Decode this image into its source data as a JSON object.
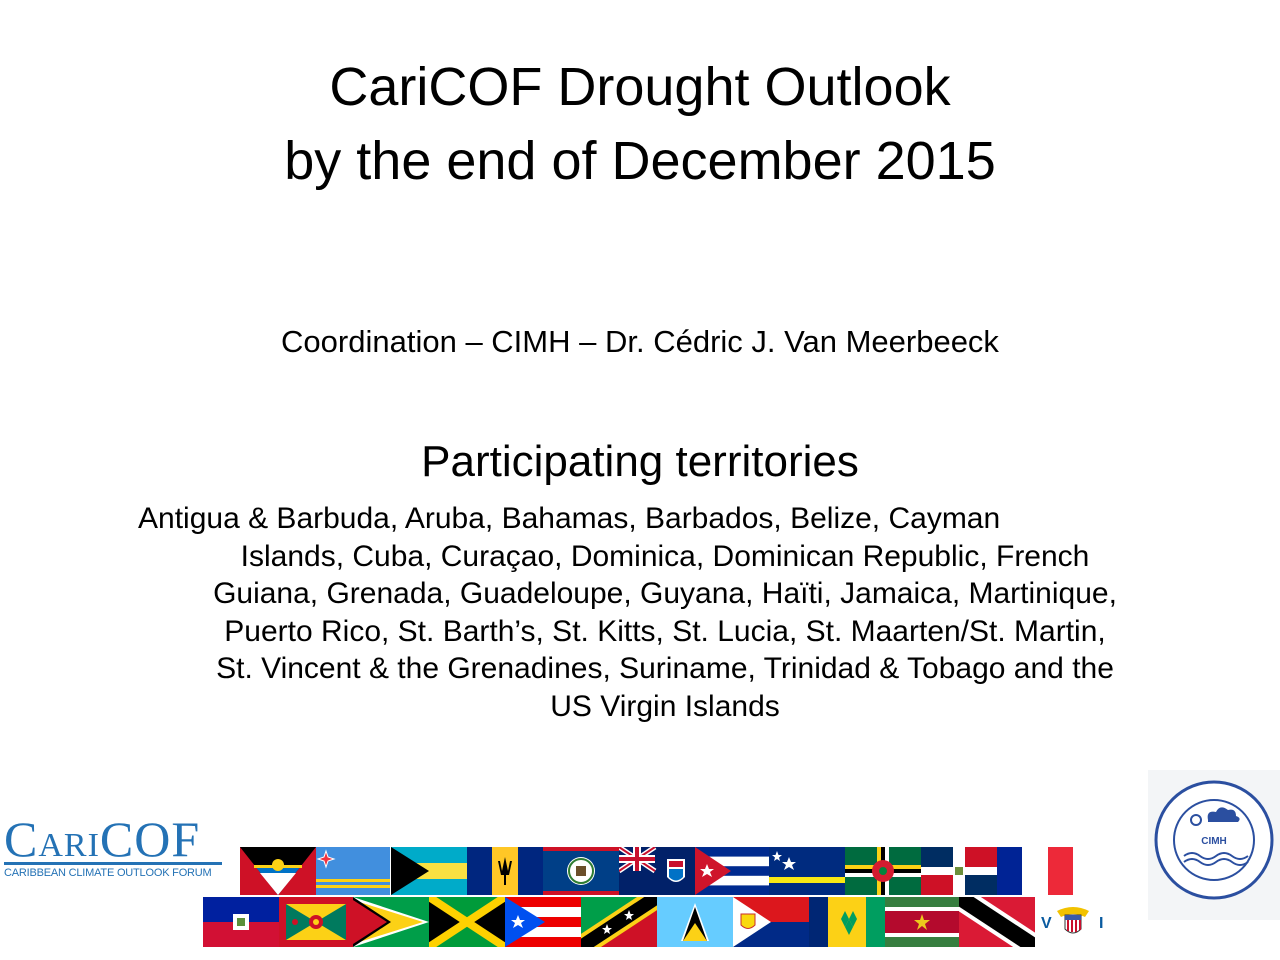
{
  "title": {
    "line1": "CariCOF Drought Outlook",
    "line2": "by the end of December 2015"
  },
  "coordination": "Coordination – CIMH – Dr. Cédric J. Van Meerbeeck",
  "participating_heading": "Participating territories",
  "territories_lines": [
    "Antigua & Barbuda, Aruba, Bahamas, Barbados, Belize, Cayman",
    "Islands, Cuba, Curaçao, Dominica, Dominican Republic, French",
    "Guiana, Grenada, Guadeloupe, Guyana, Haïti, Jamaica, Martinique,",
    "Puerto Rico, St. Barth’s, St. Kitts, St. Lucia, St. Maarten/St. Martin,",
    "St. Vincent & the Grenadines, Suriname, Trinidad & Tobago and the",
    "US Virgin Islands"
  ],
  "caricof_logo": {
    "wordmark": "CARICOF",
    "tagline": "CARIBBEAN CLIMATE OUTLOOK FORUM",
    "color": "#2472b5"
  },
  "cimh_logo": {
    "name": "Caribbean Institute for Meteorology and Hydrology",
    "abbr": "CIMH",
    "color": "#2b4fa0"
  },
  "flags_row1": [
    "Antigua and Barbuda",
    "Aruba",
    "Bahamas",
    "Barbados",
    "Belize",
    "Cayman Islands",
    "Cuba",
    "Curaçao",
    "Dominica",
    "Dominican Republic",
    "France"
  ],
  "flags_row2": [
    "Haiti",
    "Grenada",
    "Guyana",
    "Jamaica",
    "Puerto Rico",
    "St. Kitts and Nevis",
    "St. Lucia",
    "Sint Maarten",
    "St. Vincent and the Grenadines",
    "Suriname",
    "Trinidad and Tobago",
    "US Virgin Islands"
  ]
}
